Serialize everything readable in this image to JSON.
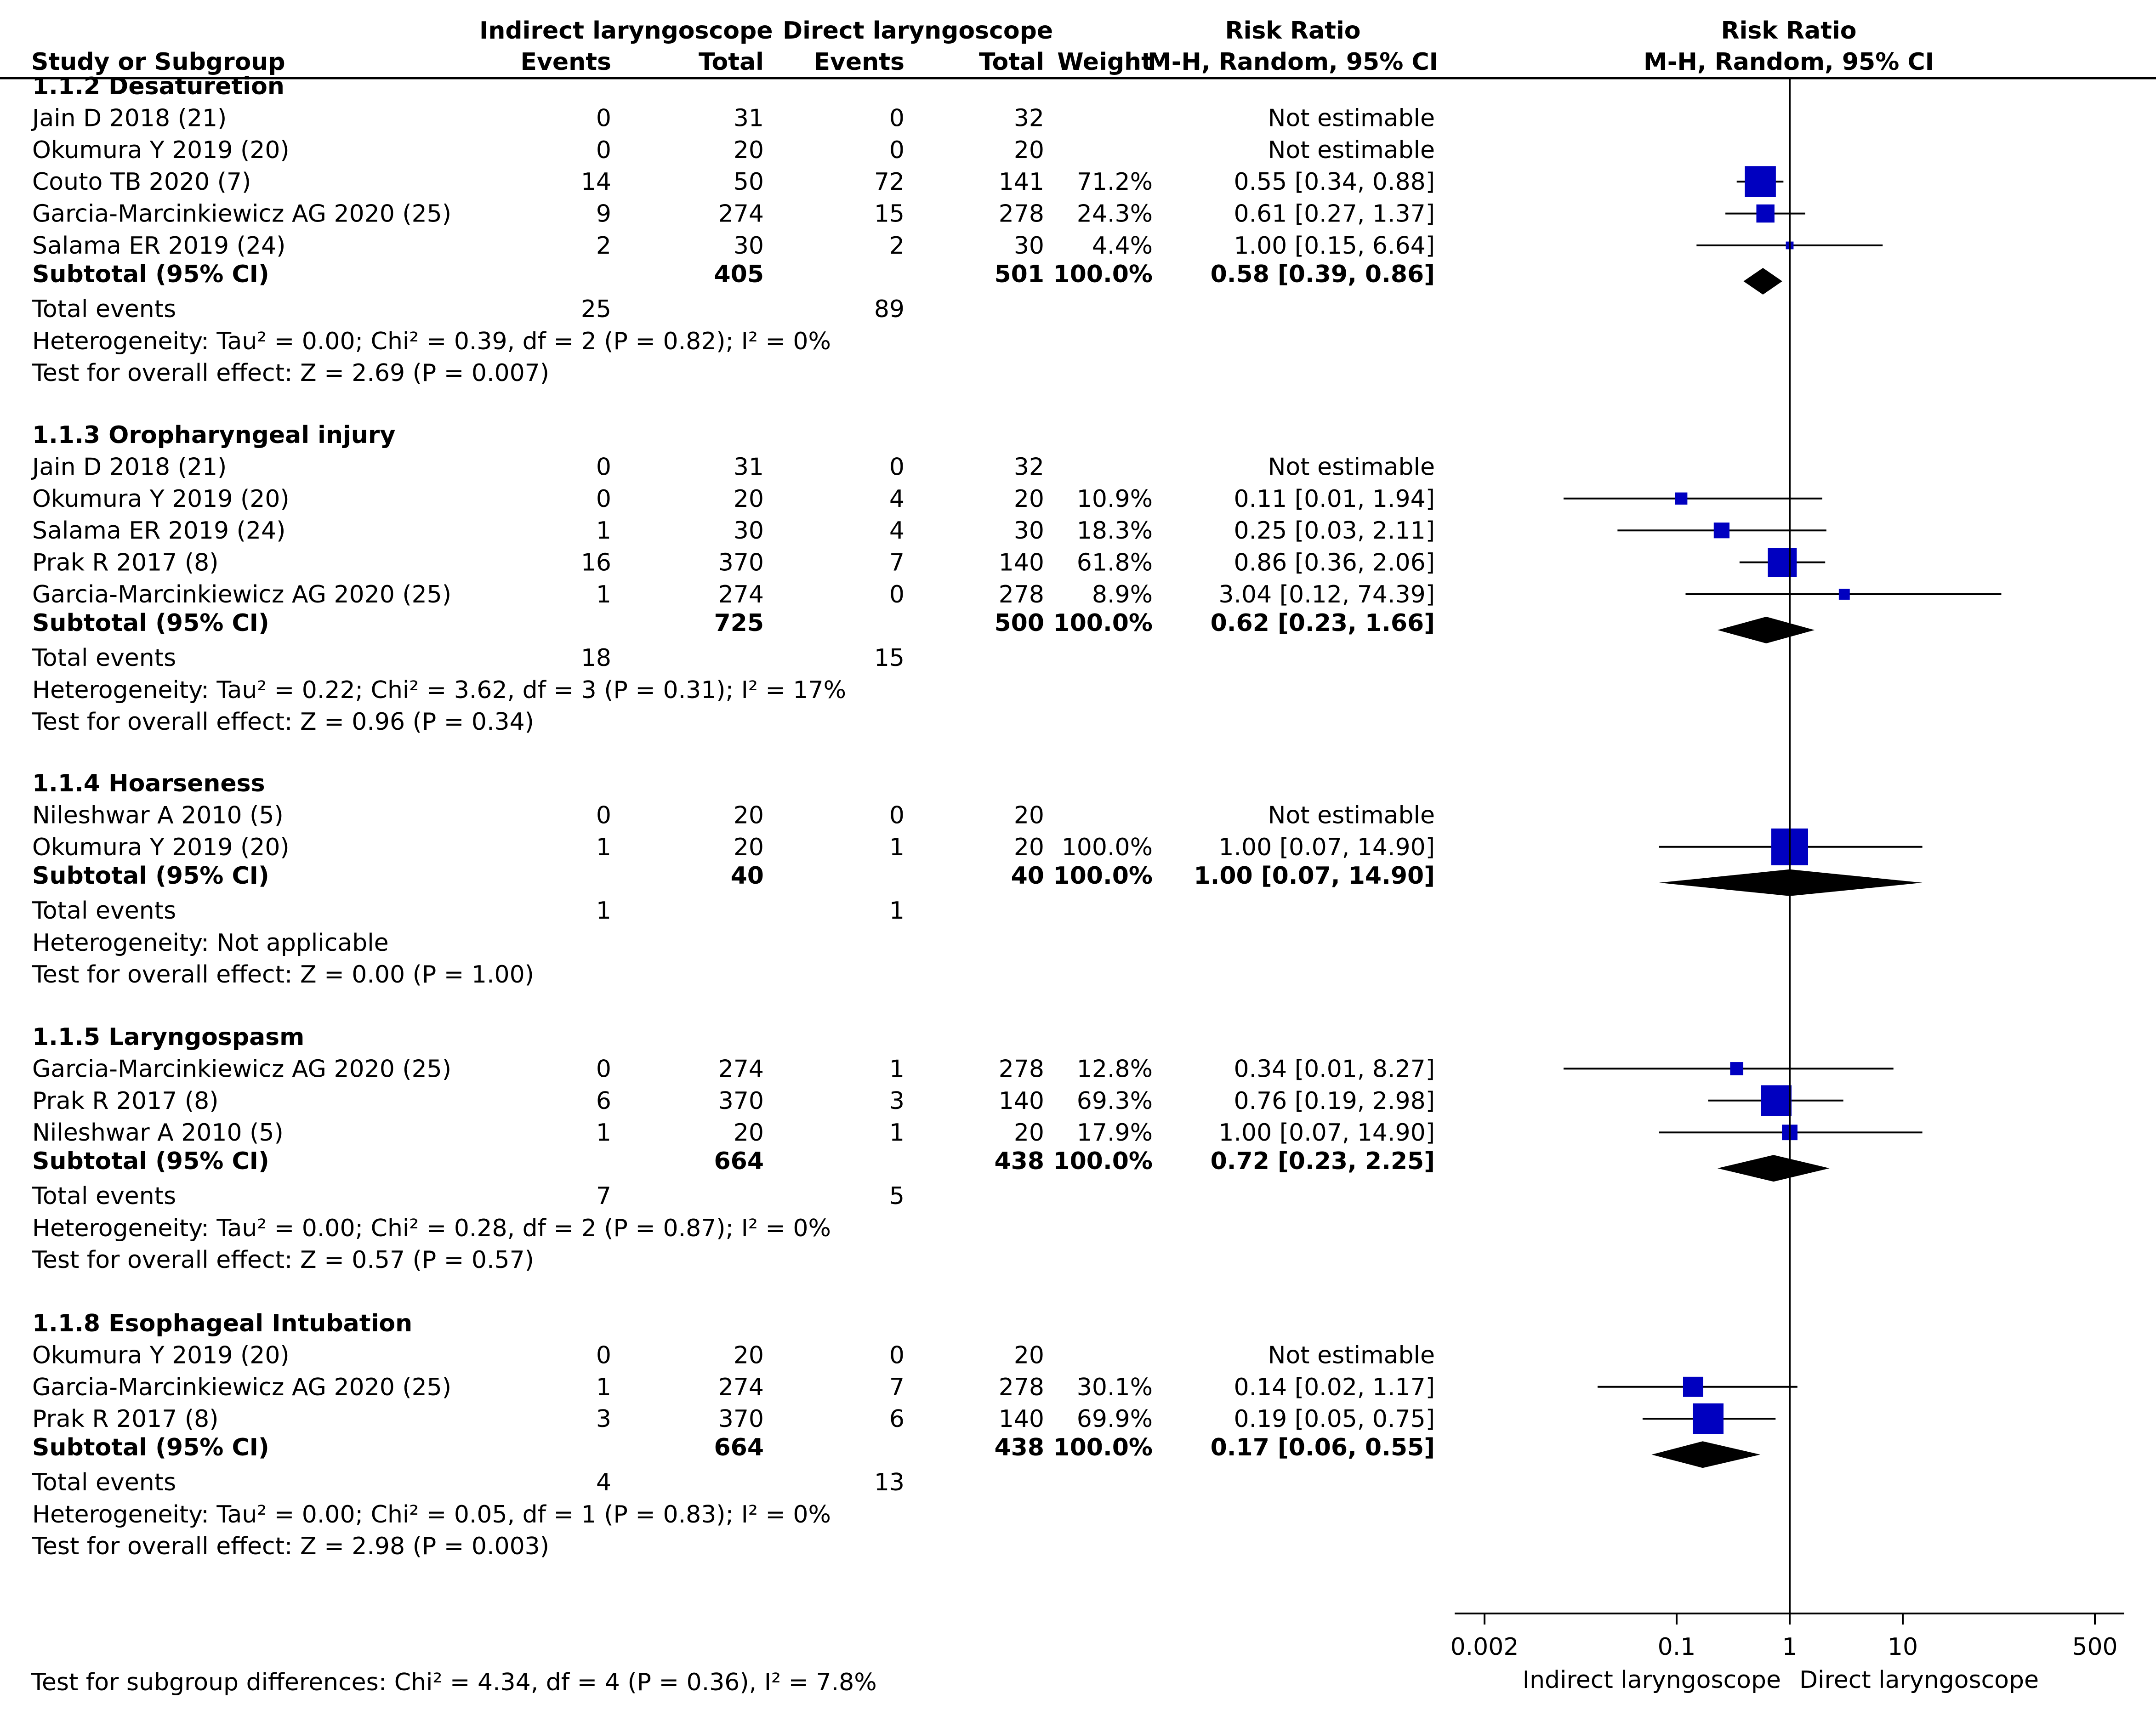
{
  "header": {
    "group1": "Indirect laryngoscope",
    "group2": "Direct laryngoscope",
    "study_col": "Study or Subgroup",
    "events": "Events",
    "total": "Total",
    "weight": "Weight",
    "rr_title": "Risk Ratio",
    "rr_method": "M-H, Random, 95% CI"
  },
  "summary_labels": {
    "subtotal": "Subtotal (95% CI)",
    "total_events": "Total events"
  },
  "subgroups": [
    {
      "title": "1.1.2 Desaturetion",
      "studies": [
        {
          "name": "Jain D 2018 (21)",
          "e1": "0",
          "n1": "31",
          "e2": "0",
          "n2": "32",
          "weight": "",
          "ci": "Not estimable"
        },
        {
          "name": "Okumura Y 2019 (20)",
          "e1": "0",
          "n1": "20",
          "e2": "0",
          "n2": "20",
          "weight": "",
          "ci": "Not estimable"
        },
        {
          "name": "Couto TB 2020 (7)",
          "e1": "14",
          "n1": "50",
          "e2": "72",
          "n2": "141",
          "weight": "71.2%",
          "ci": "0.55 [0.34, 0.88]"
        },
        {
          "name": "Garcia-Marcinkiewicz AG 2020 (25)",
          "e1": "9",
          "n1": "274",
          "e2": "15",
          "n2": "278",
          "weight": "24.3%",
          "ci": "0.61 [0.27, 1.37]"
        },
        {
          "name": "Salama ER 2019 (24)",
          "e1": "2",
          "n1": "30",
          "e2": "2",
          "n2": "30",
          "weight": "4.4%",
          "ci": "1.00 [0.15, 6.64]"
        }
      ],
      "subtotal": {
        "n1": "405",
        "n2": "501",
        "weight": "100.0%",
        "ci": "0.58 [0.39, 0.86]"
      },
      "total_events": {
        "e1": "25",
        "e2": "89"
      },
      "heterogeneity": "Heterogeneity: Tau² = 0.00; Chi² = 0.39, df = 2 (P = 0.82); I² = 0%",
      "overall_effect": "Test for overall effect: Z = 2.69 (P = 0.007)"
    },
    {
      "title": "1.1.3 Oropharyngeal injury",
      "studies": [
        {
          "name": "Jain D 2018 (21)",
          "e1": "0",
          "n1": "31",
          "e2": "0",
          "n2": "32",
          "weight": "",
          "ci": "Not estimable"
        },
        {
          "name": "Okumura Y 2019 (20)",
          "e1": "0",
          "n1": "20",
          "e2": "4",
          "n2": "20",
          "weight": "10.9%",
          "ci": "0.11 [0.01, 1.94]"
        },
        {
          "name": "Salama ER 2019 (24)",
          "e1": "1",
          "n1": "30",
          "e2": "4",
          "n2": "30",
          "weight": "18.3%",
          "ci": "0.25 [0.03, 2.11]"
        },
        {
          "name": "Prak R 2017 (8)",
          "e1": "16",
          "n1": "370",
          "e2": "7",
          "n2": "140",
          "weight": "61.8%",
          "ci": "0.86 [0.36, 2.06]"
        },
        {
          "name": "Garcia-Marcinkiewicz AG 2020 (25)",
          "e1": "1",
          "n1": "274",
          "e2": "0",
          "n2": "278",
          "weight": "8.9%",
          "ci": "3.04 [0.12, 74.39]"
        }
      ],
      "subtotal": {
        "n1": "725",
        "n2": "500",
        "weight": "100.0%",
        "ci": "0.62 [0.23, 1.66]"
      },
      "total_events": {
        "e1": "18",
        "e2": "15"
      },
      "heterogeneity": "Heterogeneity: Tau² = 0.22; Chi² = 3.62, df = 3 (P = 0.31); I² = 17%",
      "overall_effect": "Test for overall effect: Z = 0.96 (P = 0.34)"
    },
    {
      "title": "1.1.4 Hoarseness",
      "studies": [
        {
          "name": "Nileshwar A 2010 (5)",
          "e1": "0",
          "n1": "20",
          "e2": "0",
          "n2": "20",
          "weight": "",
          "ci": "Not estimable"
        },
        {
          "name": "Okumura Y 2019 (20)",
          "e1": "1",
          "n1": "20",
          "e2": "1",
          "n2": "20",
          "weight": "100.0%",
          "ci": "1.00 [0.07, 14.90]"
        }
      ],
      "subtotal": {
        "n1": "40",
        "n2": "40",
        "weight": "100.0%",
        "ci": "1.00 [0.07, 14.90]"
      },
      "total_events": {
        "e1": "1",
        "e2": "1"
      },
      "heterogeneity": "Heterogeneity: Not applicable",
      "overall_effect": "Test for overall effect: Z = 0.00 (P = 1.00)"
    },
    {
      "title": "1.1.5 Laryngospasm",
      "studies": [
        {
          "name": "Garcia-Marcinkiewicz AG 2020 (25)",
          "e1": "0",
          "n1": "274",
          "e2": "1",
          "n2": "278",
          "weight": "12.8%",
          "ci": "0.34 [0.01, 8.27]"
        },
        {
          "name": "Prak R 2017 (8)",
          "e1": "6",
          "n1": "370",
          "e2": "3",
          "n2": "140",
          "weight": "69.3%",
          "ci": "0.76 [0.19, 2.98]"
        },
        {
          "name": "Nileshwar A 2010 (5)",
          "e1": "1",
          "n1": "20",
          "e2": "1",
          "n2": "20",
          "weight": "17.9%",
          "ci": "1.00 [0.07, 14.90]"
        }
      ],
      "subtotal": {
        "n1": "664",
        "n2": "438",
        "weight": "100.0%",
        "ci": "0.72 [0.23, 2.25]"
      },
      "total_events": {
        "e1": "7",
        "e2": "5"
      },
      "heterogeneity": "Heterogeneity: Tau² = 0.00; Chi² = 0.28, df = 2 (P = 0.87); I² = 0%",
      "overall_effect": "Test for overall effect: Z = 0.57 (P = 0.57)"
    },
    {
      "title": "1.1.8 Esophageal Intubation",
      "studies": [
        {
          "name": "Okumura Y 2019 (20)",
          "e1": "0",
          "n1": "20",
          "e2": "0",
          "n2": "20",
          "weight": "",
          "ci": "Not estimable"
        },
        {
          "name": "Garcia-Marcinkiewicz AG 2020 (25)",
          "e1": "1",
          "n1": "274",
          "e2": "7",
          "n2": "278",
          "weight": "30.1%",
          "ci": "0.14 [0.02, 1.17]"
        },
        {
          "name": "Prak R 2017 (8)",
          "e1": "3",
          "n1": "370",
          "e2": "6",
          "n2": "140",
          "weight": "69.9%",
          "ci": "0.19 [0.05, 0.75]"
        }
      ],
      "subtotal": {
        "n1": "664",
        "n2": "438",
        "weight": "100.0%",
        "ci": "0.17 [0.06, 0.55]"
      },
      "total_events": {
        "e1": "4",
        "e2": "13"
      },
      "heterogeneity": "Heterogeneity: Tau² = 0.00; Chi² = 0.05, df = 1 (P = 0.83); I² = 0%",
      "overall_effect": "Test for overall effect: Z = 2.98 (P = 0.003)"
    }
  ],
  "subgroup_differences": "Test for subgroup differences: Chi² = 4.34, df = 4 (P = 0.36), I² = 7.8%",
  "axis": {
    "ticks": [
      "0.002",
      "0.1",
      "1",
      "10",
      "500"
    ],
    "label_left": "Indirect laryngoscope",
    "label_right": "Direct laryngoscope"
  },
  "colors": {
    "study_marker": "#0000c0",
    "pooled_diamond": "#000000",
    "lines": "#000000"
  },
  "chart_data": {
    "type": "forest",
    "measure": "Risk Ratio (M-H, Random, 95% CI)",
    "scale": "log",
    "xlim": [
      0.002,
      500
    ],
    "null_line": 1,
    "xticks": [
      0.002,
      0.1,
      1,
      10,
      500
    ],
    "favours_left": "Indirect laryngoscope",
    "favours_right": "Direct laryngoscope",
    "subgroups": [
      {
        "name": "1.1.2 Desaturetion",
        "studies": [
          {
            "study": "Jain D 2018 (21)",
            "rr": null
          },
          {
            "study": "Okumura Y 2019 (20)",
            "rr": null
          },
          {
            "study": "Couto TB 2020 (7)",
            "rr": 0.55,
            "lo": 0.34,
            "hi": 0.88,
            "weight": 71.2
          },
          {
            "study": "Garcia-Marcinkiewicz AG 2020 (25)",
            "rr": 0.61,
            "lo": 0.27,
            "hi": 1.37,
            "weight": 24.3
          },
          {
            "study": "Salama ER 2019 (24)",
            "rr": 1.0,
            "lo": 0.15,
            "hi": 6.64,
            "weight": 4.4
          }
        ],
        "pooled": {
          "rr": 0.58,
          "lo": 0.39,
          "hi": 0.86
        }
      },
      {
        "name": "1.1.3 Oropharyngeal injury",
        "studies": [
          {
            "study": "Jain D 2018 (21)",
            "rr": null
          },
          {
            "study": "Okumura Y 2019 (20)",
            "rr": 0.11,
            "lo": 0.01,
            "hi": 1.94,
            "weight": 10.9
          },
          {
            "study": "Salama ER 2019 (24)",
            "rr": 0.25,
            "lo": 0.03,
            "hi": 2.11,
            "weight": 18.3
          },
          {
            "study": "Prak R 2017 (8)",
            "rr": 0.86,
            "lo": 0.36,
            "hi": 2.06,
            "weight": 61.8
          },
          {
            "study": "Garcia-Marcinkiewicz AG 2020 (25)",
            "rr": 3.04,
            "lo": 0.12,
            "hi": 74.39,
            "weight": 8.9
          }
        ],
        "pooled": {
          "rr": 0.62,
          "lo": 0.23,
          "hi": 1.66
        }
      },
      {
        "name": "1.1.4 Hoarseness",
        "studies": [
          {
            "study": "Nileshwar A 2010 (5)",
            "rr": null
          },
          {
            "study": "Okumura Y 2019 (20)",
            "rr": 1.0,
            "lo": 0.07,
            "hi": 14.9,
            "weight": 100.0
          }
        ],
        "pooled": {
          "rr": 1.0,
          "lo": 0.07,
          "hi": 14.9
        }
      },
      {
        "name": "1.1.5 Laryngospasm",
        "studies": [
          {
            "study": "Garcia-Marcinkiewicz AG 2020 (25)",
            "rr": 0.34,
            "lo": 0.01,
            "hi": 8.27,
            "weight": 12.8
          },
          {
            "study": "Prak R 2017 (8)",
            "rr": 0.76,
            "lo": 0.19,
            "hi": 2.98,
            "weight": 69.3
          },
          {
            "study": "Nileshwar A 2010 (5)",
            "rr": 1.0,
            "lo": 0.07,
            "hi": 14.9,
            "weight": 17.9
          }
        ],
        "pooled": {
          "rr": 0.72,
          "lo": 0.23,
          "hi": 2.25
        }
      },
      {
        "name": "1.1.8 Esophageal Intubation",
        "studies": [
          {
            "study": "Okumura Y 2019 (20)",
            "rr": null
          },
          {
            "study": "Garcia-Marcinkiewicz AG 2020 (25)",
            "rr": 0.14,
            "lo": 0.02,
            "hi": 1.17,
            "weight": 30.1
          },
          {
            "study": "Prak R 2017 (8)",
            "rr": 0.19,
            "lo": 0.05,
            "hi": 0.75,
            "weight": 69.9
          }
        ],
        "pooled": {
          "rr": 0.17,
          "lo": 0.06,
          "hi": 0.55
        }
      }
    ]
  }
}
